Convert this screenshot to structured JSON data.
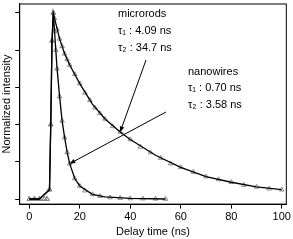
{
  "chart_data": {
    "type": "scatter",
    "xlabel": "Delay time (ns)",
    "ylabel": "Normalized intensity",
    "xlim": [
      -4,
      102
    ],
    "xticks": [
      0,
      20,
      40,
      60,
      80,
      100
    ],
    "ylim": [
      -0.03,
      1.05
    ],
    "yticks": [
      0,
      0.2,
      0.4,
      0.6,
      0.8,
      1.0
    ],
    "tick_labels": "x",
    "grid": false,
    "series": [
      {
        "color": "#808080",
        "marker": "triangle",
        "line_style": "none",
        "x": [
          0,
          2,
          4,
          6,
          7,
          8,
          8.5,
          9,
          9.5,
          10,
          11,
          12,
          13,
          14,
          15,
          16,
          18,
          20,
          22,
          24,
          26,
          28,
          30,
          33,
          36,
          40,
          44,
          48,
          52,
          56,
          60,
          65,
          70,
          75,
          80,
          85,
          90,
          95,
          100
        ],
        "values": [
          0,
          0,
          0,
          0,
          0,
          0.05,
          0.4,
          0.85,
          1.0,
          0.97,
          0.91,
          0.86,
          0.82,
          0.78,
          0.75,
          0.72,
          0.67,
          0.62,
          0.57,
          0.53,
          0.49,
          0.46,
          0.43,
          0.39,
          0.36,
          0.32,
          0.28,
          0.25,
          0.22,
          0.19,
          0.17,
          0.145,
          0.12,
          0.105,
          0.09,
          0.075,
          0.065,
          0.055,
          0.05
        ]
      },
      {
        "color": "#000000",
        "marker": "none",
        "line_style": "solid",
        "x": [
          0,
          4,
          8,
          8.5,
          9,
          9.5,
          10,
          12,
          14,
          16,
          20,
          25,
          30,
          36,
          40,
          50,
          60,
          70,
          80,
          90,
          100
        ],
        "values": [
          0,
          0,
          0.05,
          0.4,
          0.85,
          1.0,
          0.97,
          0.86,
          0.78,
          0.72,
          0.62,
          0.51,
          0.43,
          0.36,
          0.32,
          0.235,
          0.17,
          0.12,
          0.09,
          0.065,
          0.05
        ]
      },
      {
        "color": "#808080",
        "marker": "triangle",
        "line_style": "none",
        "x": [
          0,
          2,
          4,
          6,
          7,
          8,
          8.5,
          9,
          9.5,
          10,
          10.5,
          11,
          12,
          13,
          14,
          15,
          16,
          18,
          20,
          22,
          25,
          28,
          32,
          36,
          40,
          45,
          50,
          54
        ],
        "values": [
          0,
          0,
          0,
          0,
          0,
          0.05,
          0.4,
          0.85,
          1.0,
          0.9,
          0.8,
          0.7,
          0.55,
          0.42,
          0.33,
          0.25,
          0.19,
          0.11,
          0.07,
          0.045,
          0.025,
          0.015,
          0.008,
          0.005,
          0.003,
          0.002,
          0.001,
          0
        ]
      },
      {
        "color": "#000000",
        "marker": "none",
        "line_style": "solid",
        "x": [
          0,
          4,
          8,
          8.5,
          9,
          9.5,
          10,
          11,
          12,
          13,
          14,
          15,
          16,
          18,
          20,
          25,
          30,
          40,
          54
        ],
        "values": [
          0,
          0,
          0.05,
          0.4,
          0.85,
          1.0,
          0.9,
          0.7,
          0.55,
          0.42,
          0.33,
          0.25,
          0.19,
          0.11,
          0.07,
          0.025,
          0.012,
          0.003,
          0
        ]
      }
    ],
    "annotations": [
      [
        "microrods",
        "τ₁ : 4.09 ns",
        "τ₂ : 34.7 ns"
      ],
      [
        "nanowires",
        "τ₁ : 0.70 ns",
        "τ₂ : 3.58 ns"
      ]
    ]
  }
}
